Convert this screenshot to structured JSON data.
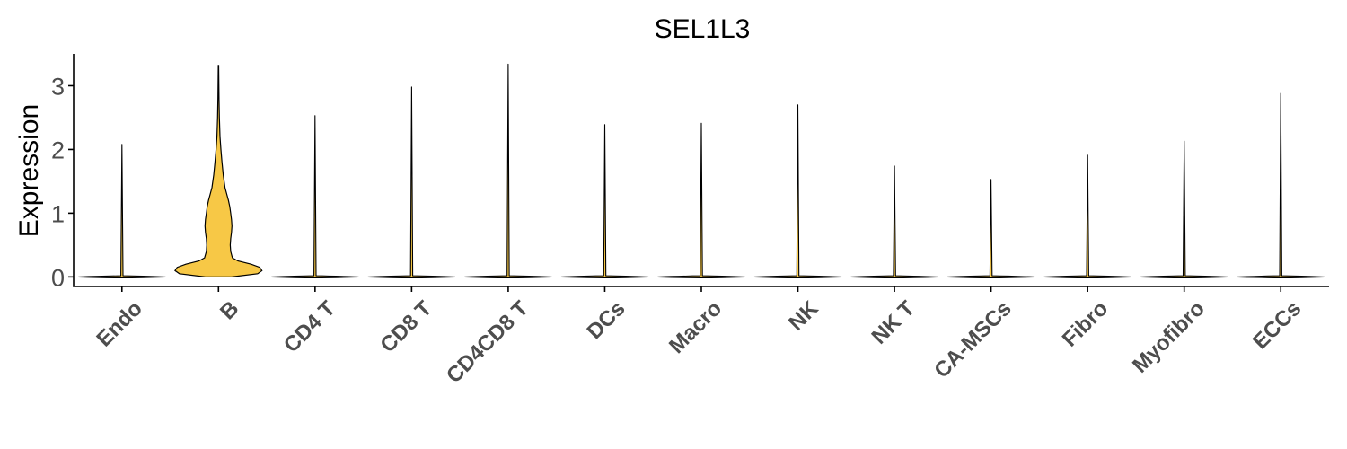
{
  "chart_data": {
    "type": "violin",
    "title": "SEL1L3",
    "ylabel": "Expression",
    "xlabel": "",
    "ylim": [
      -0.15,
      3.5
    ],
    "yticks": [
      0,
      1,
      2,
      3
    ],
    "grid": false,
    "legend": "none",
    "categories": [
      "Endo",
      "B",
      "CD4 T",
      "CD8 T",
      "CD4CD8 T",
      "DCs",
      "Macro",
      "NK",
      "NK T",
      "CA-MSCs",
      "Fibro",
      "Myofibro",
      "ECCs"
    ],
    "max_values": [
      2.08,
      3.32,
      2.53,
      2.98,
      3.34,
      2.39,
      2.41,
      2.7,
      1.74,
      1.53,
      1.91,
      2.13,
      2.88
    ],
    "highlight": {
      "category": "B",
      "color": "#F7C846",
      "profile": [
        [
          0,
          0.3
        ],
        [
          0.05,
          0.9
        ],
        [
          0.1,
          1.0
        ],
        [
          0.15,
          0.95
        ],
        [
          0.2,
          0.75
        ],
        [
          0.25,
          0.45
        ],
        [
          0.3,
          0.32
        ],
        [
          0.4,
          0.28
        ],
        [
          0.5,
          0.27
        ],
        [
          0.6,
          0.28
        ],
        [
          0.7,
          0.3
        ],
        [
          0.8,
          0.31
        ],
        [
          0.9,
          0.3
        ],
        [
          1.0,
          0.28
        ],
        [
          1.1,
          0.26
        ],
        [
          1.2,
          0.23
        ],
        [
          1.3,
          0.19
        ],
        [
          1.4,
          0.15
        ],
        [
          1.6,
          0.11
        ],
        [
          1.8,
          0.08
        ],
        [
          2.0,
          0.055
        ],
        [
          2.2,
          0.035
        ],
        [
          2.5,
          0.02
        ],
        [
          2.8,
          0.012
        ],
        [
          3.32,
          0.004
        ]
      ]
    },
    "colors": {
      "violin_fill": "#F7C846",
      "outline": "#000000",
      "axis": "#000000"
    }
  }
}
